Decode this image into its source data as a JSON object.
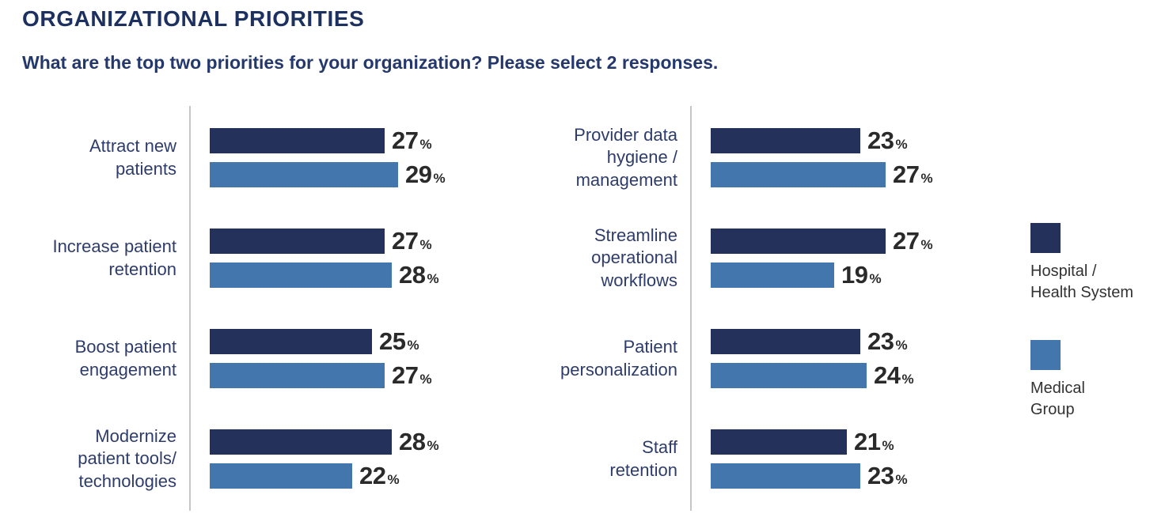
{
  "header": {
    "title": "ORGANIZATIONAL PRIORITIES",
    "subtitle": "What are the top two priorities for your organization? Please select 2 responses."
  },
  "colors": {
    "hospital_navy": "#24315a",
    "medical_blue": "#4476ae",
    "title_navy": "#1d3160",
    "category_label_navy": "#2e3c6b",
    "value_text": "#2a2a2a",
    "axis_line": "#c6c6c6"
  },
  "legend": {
    "items": [
      {
        "label": "Hospital /\nHealth System",
        "color": "#24315a",
        "series": "Hospital / Health System"
      },
      {
        "label": "Medical\nGroup",
        "color": "#4476ae",
        "series": "Medical Group"
      }
    ]
  },
  "chart_data": {
    "type": "bar",
    "orientation": "horizontal",
    "title": "ORGANIZATIONAL PRIORITIES",
    "subtitle": "What are the top two priorities for your organization? Please select 2 responses.",
    "unit": "%",
    "xlim": [
      0,
      30
    ],
    "grid": false,
    "legend_position": "right",
    "series_names": [
      "Hospital / Health System",
      "Medical Group"
    ],
    "columns": [
      {
        "rows": [
          {
            "category": "Attract new\npatients",
            "values": [
              27,
              29
            ]
          },
          {
            "category": "Increase patient\nretention",
            "values": [
              27,
              28
            ]
          },
          {
            "category": "Boost patient\nengagement",
            "values": [
              25,
              27
            ]
          },
          {
            "category": "Modernize\npatient tools/\ntechnologies",
            "values": [
              28,
              22
            ]
          }
        ]
      },
      {
        "rows": [
          {
            "category": "Provider data\nhygiene /\nmanagement",
            "values": [
              23,
              27
            ]
          },
          {
            "category": "Streamline\noperational\nworkflows",
            "values": [
              27,
              19
            ]
          },
          {
            "category": "Patient\npersonalization",
            "values": [
              23,
              24
            ]
          },
          {
            "category": "Staff\nretention",
            "values": [
              21,
              23
            ]
          }
        ]
      }
    ]
  }
}
